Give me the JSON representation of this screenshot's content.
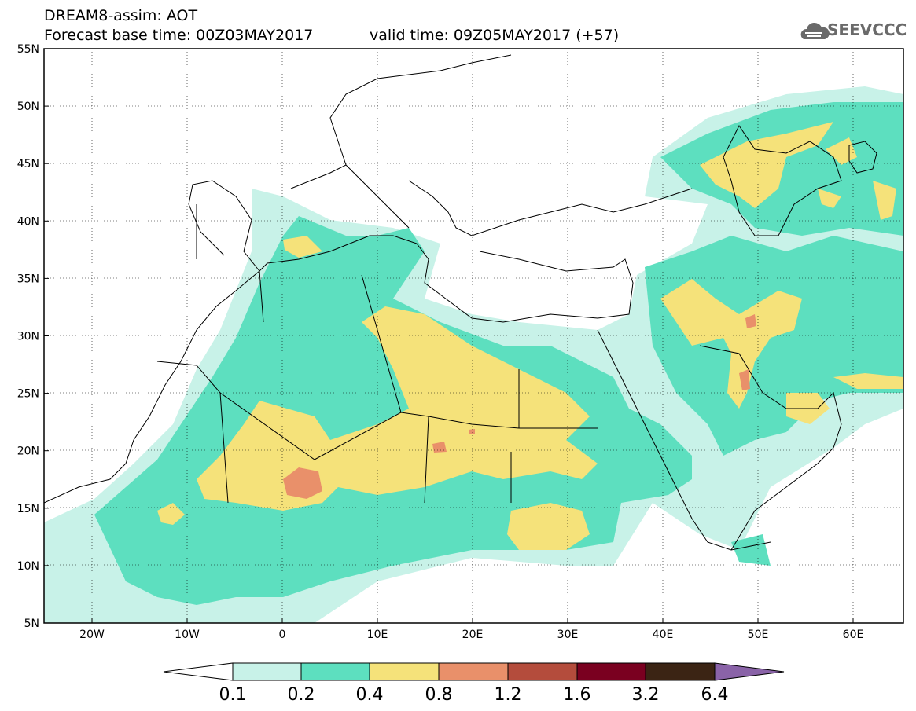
{
  "title_line1": "DREAM8-assim: AOT",
  "title_line2": "Forecast base time: 00Z03MAY2017",
  "valid_time": "valid time: 09Z05MAY2017 (+57)",
  "logo_text": "SEEVCCC",
  "lat_labels": [
    "55N",
    "50N",
    "45N",
    "40N",
    "35N",
    "30N",
    "25N",
    "20N",
    "15N",
    "10N",
    "5N"
  ],
  "lon_labels": [
    "20W",
    "10W",
    "0",
    "10E",
    "20E",
    "30E",
    "40E",
    "50E",
    "60E"
  ],
  "colorbar": {
    "labels": [
      "0.1",
      "0.2",
      "0.4",
      "0.8",
      "1.2",
      "1.6",
      "3.2",
      "6.4"
    ],
    "colors": [
      "#ffffff",
      "#c8f2e8",
      "#5ddfbf",
      "#f5e27a",
      "#e9906a",
      "#b44c3c",
      "#7a0020",
      "#3b2414",
      "#8a63a8"
    ]
  },
  "palette": {
    "c02": "#c8f2e8",
    "c04": "#5ddfbf",
    "c08": "#f5e27a",
    "c12": "#e9906a"
  }
}
